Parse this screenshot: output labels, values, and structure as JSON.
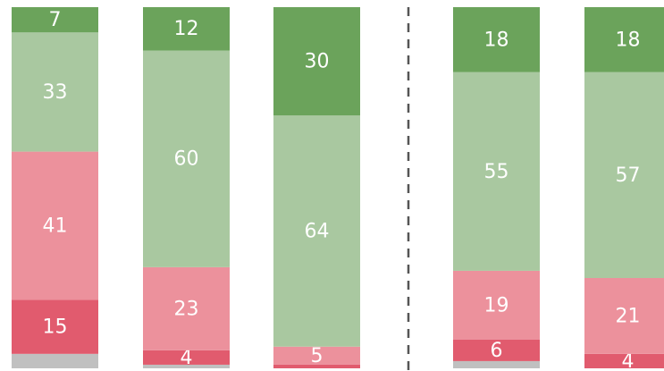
{
  "chart_data": {
    "type": "stacked-bar",
    "ylim": [
      0,
      100
    ],
    "series": [
      {
        "color": "#c0c0c0",
        "values": [
          4,
          1,
          0,
          2,
          0
        ],
        "labels": false
      },
      {
        "color": "#e15b6e",
        "values": [
          15,
          4,
          1,
          6,
          4
        ],
        "value_labels": [
          "15",
          "4",
          null,
          "6",
          "4"
        ]
      },
      {
        "color": "#ec919c",
        "values": [
          41,
          23,
          5,
          19,
          21
        ]
      },
      {
        "color": "#a9c8a0",
        "values": [
          33,
          60,
          64,
          55,
          57
        ]
      },
      {
        "color": "#6ba35b",
        "values": [
          7,
          12,
          30,
          18,
          18
        ]
      }
    ]
  }
}
